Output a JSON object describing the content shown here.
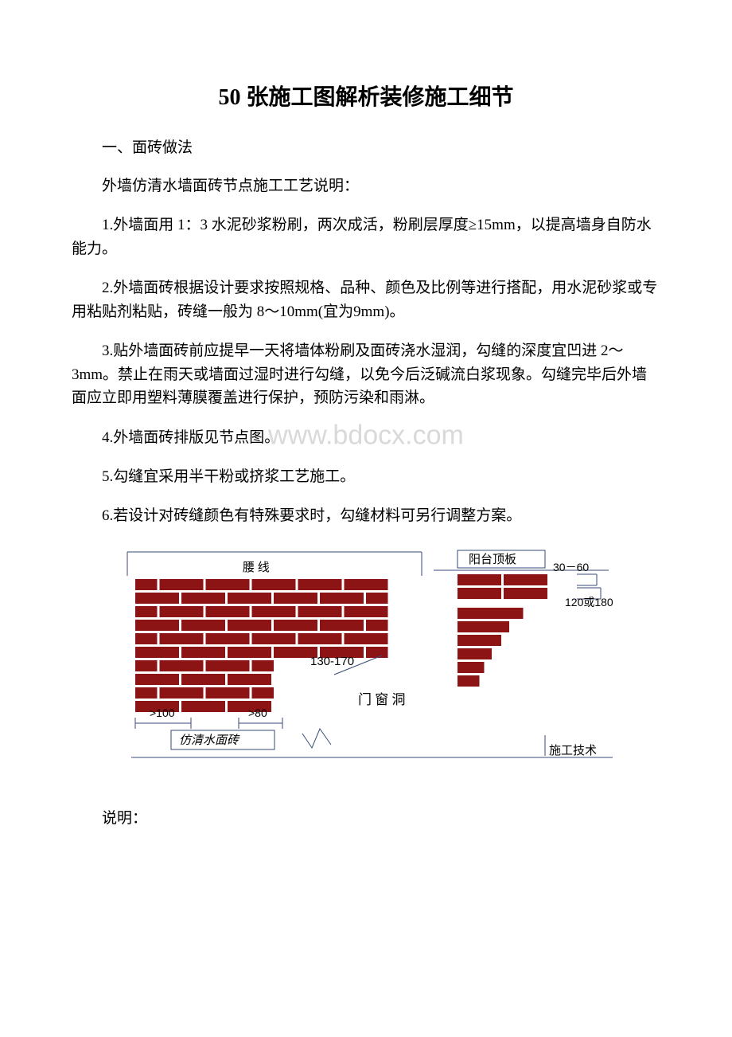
{
  "title": "50 张施工图解析装修施工细节",
  "section_heading": "一、面砖做法",
  "paragraphs": {
    "p0": "外墙仿清水墙面砖节点施工工艺说明：",
    "p1": "1.外墙面用 1：3 水泥砂浆粉刷，两次成活，粉刷层厚度≥15mm，以提高墙身自防水能力。",
    "p2": "2.外墙面砖根据设计要求按照规格、品种、颜色及比例等进行搭配，用水泥砂浆或专用粘贴剂粘贴，砖缝一般为 8～10mm(宜为9mm)。",
    "p3": "3.贴外墙面砖前应提早一天将墙体粉刷及面砖浇水湿润，勾缝的深度宜凹进 2～3mm。禁止在雨天或墙面过湿时进行勾缝，以免今后泛碱流白浆现象。勾缝完毕后外墙面应立即用塑料薄膜覆盖进行保护，预防污染和雨淋。",
    "p4": "4.外墙面砖排版见节点图。",
    "p5": "5.勾缝宜采用半干粉或挤浆工艺施工。",
    "p6": "6.若设计对砖缝颜色有特殊要求时，勾缝材料可另行调整方案。"
  },
  "watermark": "www.bdocx.com",
  "post_diagram": "说明：",
  "diagram": {
    "labels": {
      "waist": "腰    线",
      "balcony": "阳台顶板",
      "dim_30_60": "30－60",
      "dim_120_180": "120或180",
      "dim_130_170": "130-170",
      "dim_gt100": ">100",
      "dim_gt80": ">80",
      "door_window": "门  窗    洞",
      "tile_type": "仿清水面砖",
      "footer": "施工技术"
    },
    "brick_color": "#8d1414",
    "line_color": "#3a4a7a",
    "label_fontsize": 15,
    "brick_h": 14,
    "gap": 3
  }
}
